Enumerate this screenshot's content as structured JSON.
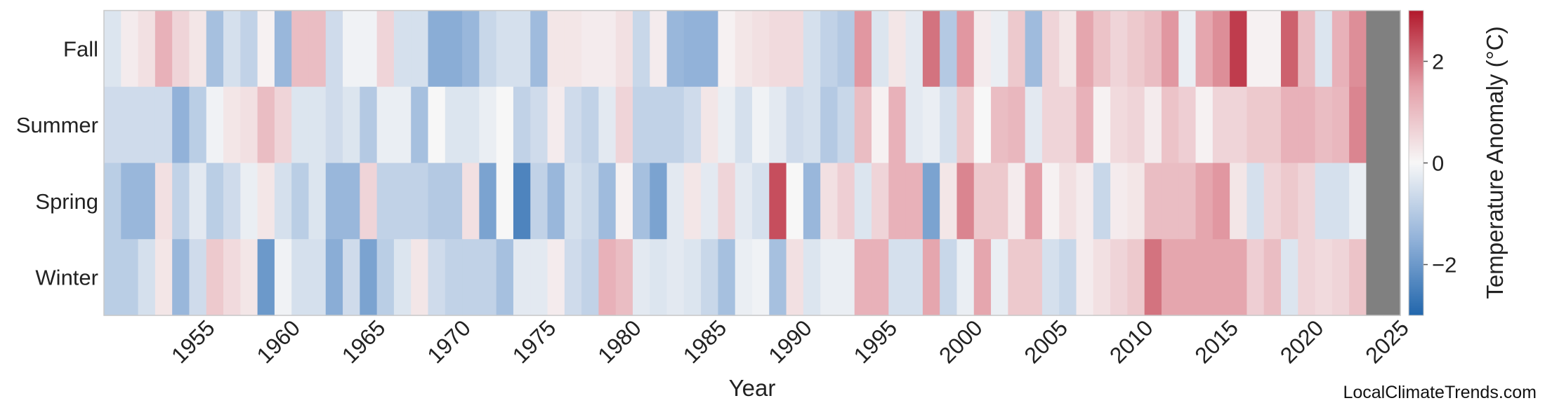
{
  "chart_data": {
    "type": "heatmap",
    "xlabel": "Year",
    "ylabel": "",
    "rows": [
      "Fall",
      "Summer",
      "Spring",
      "Winter"
    ],
    "x_ticks": [
      1955,
      1960,
      1965,
      1970,
      1975,
      1980,
      1985,
      1990,
      1995,
      2000,
      2005,
      2010,
      2015,
      2020,
      2025
    ],
    "year_start": 1950,
    "year_end": 2025,
    "colorbar": {
      "label": "Temperature Anomaly (°C)",
      "range": [
        -3,
        3
      ],
      "ticks": [
        -2,
        0,
        2
      ],
      "tick_labels": [
        "−2",
        "0",
        "2"
      ],
      "low_color": "#2166ac",
      "mid_color": "#f7f7f7",
      "high_color": "#b2182b",
      "missing_color": "#808080"
    },
    "values": {
      "Fall": [
        -0.4,
        0.2,
        0.4,
        1.2,
        0.6,
        0.3,
        -1.2,
        -0.5,
        -0.8,
        0.1,
        -1.4,
        1.0,
        1.0,
        -0.6,
        -0.1,
        -0.1,
        0.6,
        -0.5,
        -0.5,
        -1.6,
        -1.6,
        -1.4,
        -0.7,
        -0.5,
        -0.5,
        -1.3,
        0.3,
        0.3,
        0.2,
        0.2,
        0.4,
        -0.7,
        0.2,
        -1.4,
        -1.5,
        -1.5,
        0.1,
        0.3,
        0.4,
        0.5,
        0.5,
        -0.5,
        -0.8,
        -1.0,
        1.6,
        -0.4,
        0.3,
        -0.3,
        2.0,
        -1.0,
        1.6,
        0.2,
        -0.2,
        0.8,
        -1.3,
        0.6,
        0.3,
        1.4,
        0.9,
        0.6,
        0.8,
        1.0,
        1.6,
        -0.2,
        1.4,
        1.7,
        2.6,
        0.1,
        0.1,
        2.2,
        1.0,
        -0.4,
        1.2,
        1.7,
        null
      ],
      "Summer": [
        -0.6,
        -0.6,
        -0.6,
        -0.6,
        -1.5,
        -0.9,
        -0.1,
        0.3,
        0.4,
        1.0,
        0.6,
        -0.4,
        -0.4,
        -0.6,
        -0.4,
        -1.0,
        -0.2,
        -0.2,
        -1.2,
        0.0,
        -0.4,
        -0.4,
        -0.2,
        0.0,
        -0.8,
        -0.6,
        0.2,
        -0.6,
        -0.8,
        -0.3,
        0.6,
        -0.8,
        -0.8,
        -0.8,
        -0.6,
        0.3,
        -0.2,
        -0.5,
        -0.1,
        -0.3,
        -0.6,
        -0.5,
        -1.0,
        -0.7,
        1.0,
        0.1,
        1.2,
        -0.3,
        -0.2,
        -0.5,
        0.8,
        0.0,
        1.0,
        1.1,
        -0.3,
        0.6,
        0.6,
        1.2,
        0.1,
        0.5,
        0.6,
        0.2,
        0.9,
        0.7,
        0.1,
        0.6,
        0.6,
        0.8,
        0.8,
        1.2,
        1.2,
        1.0,
        1.1,
        1.8,
        null
      ],
      "Spring": [
        -0.9,
        -1.4,
        -1.4,
        0.4,
        -0.8,
        -0.3,
        -0.9,
        -0.6,
        -0.2,
        0.3,
        -0.5,
        -0.9,
        -0.4,
        -1.4,
        -1.4,
        0.6,
        -0.8,
        -0.8,
        -0.8,
        -1.0,
        -1.0,
        0.4,
        -1.8,
        0.0,
        -2.4,
        -0.8,
        -1.4,
        -0.5,
        -0.7,
        -1.3,
        0.1,
        -1.2,
        -1.8,
        -0.3,
        0.3,
        -0.3,
        0.6,
        -0.3,
        -0.5,
        2.4,
        0.0,
        -1.4,
        0.4,
        0.7,
        -0.4,
        0.6,
        1.2,
        1.2,
        -1.8,
        0.3,
        1.8,
        0.8,
        0.8,
        0.2,
        1.5,
        0.1,
        0.4,
        0.2,
        -0.7,
        0.2,
        0.3,
        1.0,
        1.0,
        1.0,
        1.4,
        1.6,
        0.3,
        -0.5,
        0.6,
        0.8,
        0.6,
        -0.5,
        -0.5,
        -0.2,
        null
      ],
      "Winter": [
        -0.9,
        -0.9,
        -0.5,
        0.3,
        -1.4,
        -0.6,
        0.8,
        0.5,
        0.3,
        -2.0,
        -0.1,
        -0.5,
        -0.5,
        -1.6,
        -0.6,
        -1.8,
        -0.9,
        -0.4,
        0.3,
        -0.6,
        -0.8,
        -0.8,
        -0.8,
        -1.2,
        -0.3,
        -0.3,
        0.2,
        -0.6,
        -0.8,
        1.2,
        1.0,
        -0.3,
        -0.4,
        -0.3,
        -0.4,
        -0.7,
        -1.2,
        -0.2,
        -0.1,
        -1.2,
        0.4,
        -0.4,
        -0.2,
        -0.2,
        1.2,
        1.2,
        -0.5,
        -0.5,
        1.4,
        -0.7,
        -0.2,
        1.4,
        -0.2,
        0.8,
        0.8,
        -0.5,
        -0.7,
        0.2,
        0.4,
        0.6,
        0.8,
        2.0,
        1.4,
        1.4,
        1.4,
        1.4,
        1.4,
        0.7,
        1.0,
        -0.4,
        0.6,
        0.5,
        0.6,
        0.9,
        null
      ]
    }
  },
  "footer": {
    "credit": "LocalClimateTrends.com"
  }
}
